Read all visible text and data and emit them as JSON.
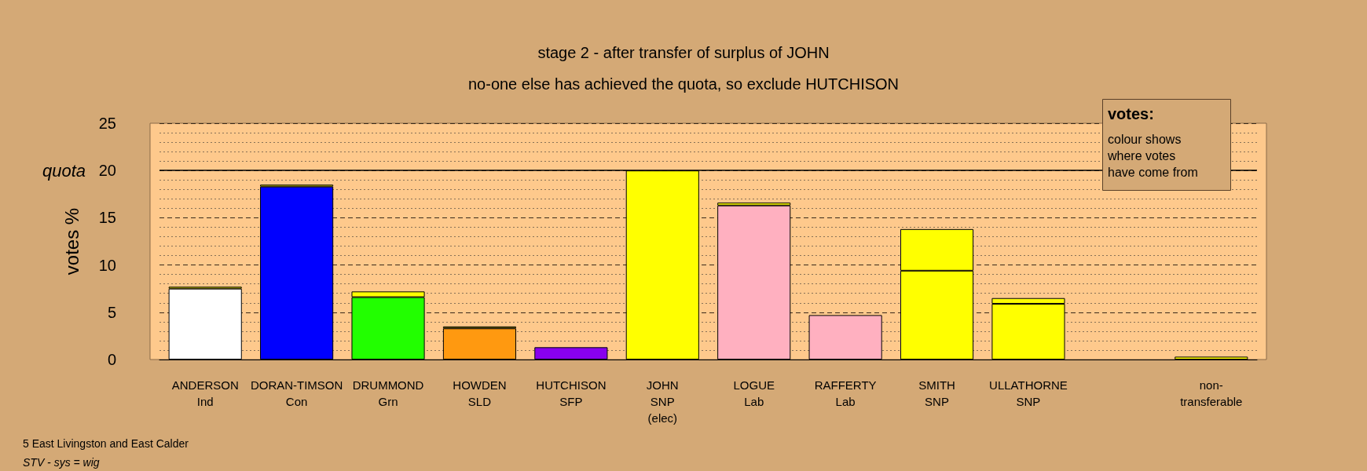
{
  "chart_data": {
    "type": "bar",
    "stacked": true,
    "title": "stage 2 - after transfer of surplus of JOHN",
    "subtitle": "no-one else has achieved the quota, so exclude HUTCHISON",
    "ylabel": "votes %",
    "categories": [
      "ANDERSON\nInd",
      "DORAN-TIMSON\nCon",
      "DRUMMOND\nGrn",
      "HOWDEN\nSLD",
      "HUTCHISON\nSFP",
      "JOHN\nSNP\n(elec)",
      "LOGUE\nLab",
      "RAFFERTY\nLab",
      "SMITH\nSNP",
      "ULLATHORNE\nSNP",
      null,
      "non-\ntransferable"
    ],
    "series": [
      {
        "colors": [
          "#ffffff",
          "#0000ff",
          "#22ff00",
          "#ff9910",
          "#8800ee",
          "#ffff00",
          "#ffb0c0",
          "#ffb0c0",
          "#ffff00",
          "#ffff00",
          null,
          null
        ],
        "values": [
          7.5,
          18.3,
          6.6,
          3.3,
          1.3,
          20,
          16.3,
          4.7,
          9.4,
          5.9,
          null,
          null
        ]
      },
      {
        "color": "#ffff00",
        "values": [
          0.2,
          0.2,
          0.6,
          0.2,
          null,
          null,
          0.3,
          null,
          4.4,
          0.6,
          null,
          0.3
        ]
      }
    ],
    "ylim": [
      0,
      25
    ],
    "yticks": [
      0,
      5,
      10,
      15,
      20,
      25
    ],
    "grid": "y",
    "ref_lines": [
      {
        "axis": "y",
        "value": 20,
        "label": "quota"
      }
    ],
    "annotations": [
      "votes:",
      "colour shows\nwhere votes\nhave come from",
      "5 East Livingston and East Calder",
      "STV - sys = wig"
    ]
  }
}
